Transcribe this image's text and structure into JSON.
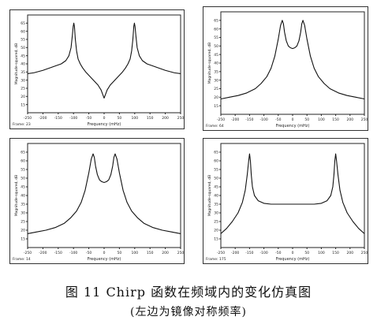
{
  "caption": {
    "line1": "图 11   Chirp 函数在频域内的变化仿真图",
    "line2": "(左边为镜像对称频率)"
  },
  "chart_data": [
    {
      "type": "line",
      "frame_label": "Frame: 23",
      "xlabel": "Frequency (mHz)",
      "ylabel": "Magnitude-squared, dB",
      "xlim": [
        -250,
        250
      ],
      "ylim": [
        10,
        70
      ],
      "x_ticks": [
        -250,
        -200,
        -150,
        -100,
        -50,
        0,
        50,
        100,
        150,
        200,
        250
      ],
      "y_ticks": [
        15,
        20,
        25,
        30,
        35,
        40,
        45,
        50,
        55,
        60,
        65
      ],
      "series": [
        {
          "x": [
            -250,
            -230,
            -200,
            -170,
            -140,
            -125,
            -115,
            -108,
            -104,
            -101,
            -99,
            -97,
            -94,
            -90,
            -85,
            -78,
            -70,
            -60,
            -50,
            -40,
            -30,
            -20,
            -10,
            0,
            10,
            20,
            30,
            40,
            50,
            60,
            70,
            78,
            85,
            90,
            94,
            97,
            99,
            101,
            104,
            108,
            115,
            125,
            140,
            170,
            200,
            230,
            250
          ],
          "y": [
            34,
            34.5,
            36,
            38,
            40,
            42,
            45,
            50,
            57,
            63,
            65,
            63,
            55,
            48,
            43,
            40,
            37.5,
            35,
            33,
            31,
            29,
            27,
            24,
            19,
            24,
            27,
            29,
            31,
            33,
            35,
            37.5,
            40,
            43,
            48,
            55,
            63,
            65,
            63,
            57,
            50,
            45,
            42,
            40,
            38,
            36,
            34.5,
            34
          ]
        }
      ]
    },
    {
      "type": "line",
      "frame_label": "Frame: 64",
      "xlabel": "Frequency (mHz)",
      "ylabel": "Magnitude-squared, dB",
      "xlim": [
        -250,
        250
      ],
      "ylim": [
        10,
        70
      ],
      "x_ticks": [
        -250,
        -200,
        -150,
        -100,
        -50,
        0,
        50,
        100,
        150,
        200,
        250
      ],
      "y_ticks": [
        15,
        20,
        25,
        30,
        35,
        40,
        45,
        50,
        55,
        60,
        65
      ],
      "series": [
        {
          "x": [
            -250,
            -220,
            -190,
            -160,
            -130,
            -110,
            -90,
            -75,
            -62,
            -50,
            -42,
            -36,
            -32,
            -28,
            -22,
            -15,
            -8,
            0,
            8,
            15,
            22,
            28,
            32,
            36,
            42,
            50,
            62,
            75,
            90,
            110,
            130,
            160,
            190,
            220,
            250
          ],
          "y": [
            19,
            20,
            21,
            22.5,
            25,
            28,
            32,
            37,
            44,
            54,
            62,
            65,
            63,
            58,
            53,
            50,
            49,
            48.5,
            49,
            50,
            53,
            58,
            63,
            65,
            62,
            54,
            44,
            37,
            32,
            28,
            25,
            22.5,
            21,
            20,
            19
          ]
        }
      ]
    },
    {
      "type": "line",
      "frame_label": "Frame: 14",
      "xlabel": "Frequency (mHz)",
      "ylabel": "Magnitude-squared, dB",
      "xlim": [
        -250,
        250
      ],
      "ylim": [
        10,
        70
      ],
      "x_ticks": [
        -250,
        -200,
        -150,
        -100,
        -50,
        0,
        50,
        100,
        150,
        200,
        250
      ],
      "y_ticks": [
        15,
        20,
        25,
        30,
        35,
        40,
        45,
        50,
        55,
        60,
        65
      ],
      "series": [
        {
          "x": [
            -250,
            -220,
            -190,
            -160,
            -130,
            -110,
            -90,
            -75,
            -62,
            -50,
            -42,
            -36,
            -32,
            -28,
            -22,
            -15,
            -8,
            0,
            8,
            15,
            22,
            28,
            32,
            36,
            42,
            50,
            62,
            75,
            90,
            110,
            130,
            160,
            190,
            220,
            250
          ],
          "y": [
            18,
            19,
            20,
            21.5,
            24,
            27,
            31,
            36,
            43,
            53,
            61,
            64,
            62,
            57,
            52,
            49,
            48,
            47.5,
            48,
            49,
            52,
            57,
            62,
            64,
            61,
            53,
            43,
            36,
            31,
            27,
            24,
            21.5,
            20,
            19,
            18
          ]
        }
      ]
    },
    {
      "type": "line",
      "frame_label": "Frame: 175",
      "xlabel": "Frequency (mHz)",
      "ylabel": "Magnitude-squared, dB",
      "xlim": [
        -250,
        250
      ],
      "ylim": [
        10,
        70
      ],
      "x_ticks": [
        -250,
        -200,
        -150,
        -100,
        -50,
        0,
        50,
        100,
        150,
        200,
        250
      ],
      "y_ticks": [
        15,
        20,
        25,
        30,
        35,
        40,
        45,
        50,
        55,
        60,
        65
      ],
      "series": [
        {
          "x": [
            -250,
            -230,
            -210,
            -190,
            -175,
            -165,
            -158,
            -153,
            -150,
            -147,
            -144,
            -140,
            -133,
            -120,
            -100,
            -75,
            -50,
            -25,
            0,
            25,
            50,
            75,
            100,
            120,
            133,
            140,
            144,
            147,
            150,
            153,
            158,
            165,
            175,
            190,
            210,
            230,
            250
          ],
          "y": [
            18,
            21,
            25,
            30,
            36,
            43,
            52,
            60,
            64,
            60,
            52,
            45,
            40,
            37,
            35.5,
            35,
            35,
            35,
            35,
            35,
            35,
            35,
            35.5,
            37,
            40,
            45,
            52,
            60,
            64,
            60,
            52,
            43,
            36,
            30,
            25,
            21,
            18
          ]
        }
      ]
    }
  ]
}
